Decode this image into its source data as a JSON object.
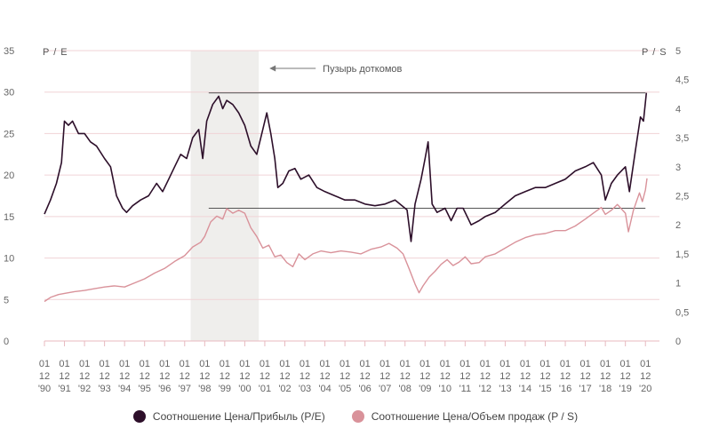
{
  "chart_data": {
    "type": "line",
    "y_left": {
      "label": "P / E",
      "ticks": [
        "0",
        "5",
        "10",
        "15",
        "20",
        "25",
        "30",
        "35"
      ],
      "range": [
        0,
        35
      ]
    },
    "y_right": {
      "label": "P / S",
      "ticks": [
        "0",
        "0,5",
        "1",
        "1,5",
        "2",
        "2,5",
        "3",
        "3,5",
        "4",
        "4,5",
        "5"
      ],
      "range": [
        0,
        5
      ]
    },
    "x_ticks": [
      [
        "01",
        "12",
        "'90"
      ],
      [
        "01",
        "12",
        "'91"
      ],
      [
        "01",
        "12",
        "'92"
      ],
      [
        "01",
        "12",
        "'93"
      ],
      [
        "01",
        "12",
        "'94"
      ],
      [
        "01",
        "12",
        "'95"
      ],
      [
        "01",
        "12",
        "'96"
      ],
      [
        "01",
        "12",
        "'97"
      ],
      [
        "01",
        "12",
        "'98"
      ],
      [
        "01",
        "12",
        "'99"
      ],
      [
        "01",
        "12",
        "'00"
      ],
      [
        "01",
        "12",
        "'01"
      ],
      [
        "01",
        "12",
        "'02"
      ],
      [
        "01",
        "12",
        "'03"
      ],
      [
        "01",
        "12",
        "'04"
      ],
      [
        "01",
        "12",
        "'05"
      ],
      [
        "01",
        "12",
        "'06"
      ],
      [
        "01",
        "12",
        "'07"
      ],
      [
        "01",
        "12",
        "'08"
      ],
      [
        "01",
        "12",
        "'09"
      ],
      [
        "01",
        "12",
        "'10"
      ],
      [
        "01",
        "12",
        "'11"
      ],
      [
        "01",
        "12",
        "'12"
      ],
      [
        "01",
        "12",
        "'13"
      ],
      [
        "01",
        "12",
        "'14"
      ],
      [
        "01",
        "12",
        "'15"
      ],
      [
        "01",
        "12",
        "'16"
      ],
      [
        "01",
        "12",
        "'17"
      ],
      [
        "01",
        "12",
        "'18"
      ],
      [
        "01",
        "12",
        "'19"
      ],
      [
        "01",
        "12",
        "'20"
      ]
    ],
    "x_range": [
      1990.0,
      2020.7
    ],
    "shade": {
      "from": 1997.3,
      "to": 2000.7,
      "label": "Пузырь доткомов"
    },
    "ref_lines": [
      {
        "axis": "left",
        "value": 29.9,
        "from": 1998.2,
        "to": 2020.0
      },
      {
        "axis": "left",
        "value": 16.0,
        "from": 1998.2,
        "to": 2020.0
      }
    ],
    "series": [
      {
        "name": "Соотношение Цена/Прибыль (P/E)",
        "axis": "left",
        "color": "#2d0f2a",
        "points": [
          [
            1990.0,
            15.3
          ],
          [
            1990.3,
            17.0
          ],
          [
            1990.6,
            19.0
          ],
          [
            1990.85,
            21.5
          ],
          [
            1991.0,
            26.5
          ],
          [
            1991.2,
            26.0
          ],
          [
            1991.4,
            26.5
          ],
          [
            1991.7,
            25.0
          ],
          [
            1992.0,
            25.0
          ],
          [
            1992.3,
            24.0
          ],
          [
            1992.6,
            23.5
          ],
          [
            1993.0,
            22.0
          ],
          [
            1993.3,
            21.0
          ],
          [
            1993.6,
            17.5
          ],
          [
            1993.9,
            16.0
          ],
          [
            1994.1,
            15.5
          ],
          [
            1994.4,
            16.3
          ],
          [
            1994.8,
            17.0
          ],
          [
            1995.2,
            17.5
          ],
          [
            1995.6,
            19.0
          ],
          [
            1995.9,
            18.0
          ],
          [
            1996.2,
            19.5
          ],
          [
            1996.5,
            21.0
          ],
          [
            1996.8,
            22.5
          ],
          [
            1997.1,
            22.0
          ],
          [
            1997.4,
            24.5
          ],
          [
            1997.7,
            25.5
          ],
          [
            1997.9,
            22.0
          ],
          [
            1998.1,
            26.5
          ],
          [
            1998.4,
            28.5
          ],
          [
            1998.7,
            29.5
          ],
          [
            1998.9,
            28.0
          ],
          [
            1999.1,
            29.0
          ],
          [
            1999.4,
            28.5
          ],
          [
            1999.7,
            27.5
          ],
          [
            2000.0,
            26.0
          ],
          [
            2000.3,
            23.5
          ],
          [
            2000.6,
            22.5
          ],
          [
            2000.9,
            25.5
          ],
          [
            2001.1,
            27.5
          ],
          [
            2001.3,
            25.0
          ],
          [
            2001.5,
            22.0
          ],
          [
            2001.65,
            18.5
          ],
          [
            2001.9,
            19.0
          ],
          [
            2002.2,
            20.5
          ],
          [
            2002.5,
            20.8
          ],
          [
            2002.8,
            19.5
          ],
          [
            2003.2,
            20.0
          ],
          [
            2003.6,
            18.5
          ],
          [
            2004.0,
            18.0
          ],
          [
            2004.5,
            17.5
          ],
          [
            2005.0,
            17.0
          ],
          [
            2005.5,
            17.0
          ],
          [
            2006.0,
            16.5
          ],
          [
            2006.5,
            16.3
          ],
          [
            2007.0,
            16.5
          ],
          [
            2007.5,
            17.0
          ],
          [
            2007.85,
            16.3
          ],
          [
            2008.1,
            15.8
          ],
          [
            2008.3,
            12.0
          ],
          [
            2008.5,
            16.5
          ],
          [
            2008.8,
            19.5
          ],
          [
            2009.0,
            22.0
          ],
          [
            2009.15,
            24.0
          ],
          [
            2009.35,
            16.5
          ],
          [
            2009.6,
            15.5
          ],
          [
            2010.0,
            16.0
          ],
          [
            2010.3,
            14.5
          ],
          [
            2010.6,
            16.0
          ],
          [
            2010.9,
            16.0
          ],
          [
            2011.3,
            14.0
          ],
          [
            2011.7,
            14.5
          ],
          [
            2012.0,
            15.0
          ],
          [
            2012.5,
            15.5
          ],
          [
            2013.0,
            16.5
          ],
          [
            2013.5,
            17.5
          ],
          [
            2014.0,
            18.0
          ],
          [
            2014.5,
            18.5
          ],
          [
            2015.0,
            18.5
          ],
          [
            2015.5,
            19.0
          ],
          [
            2016.0,
            19.5
          ],
          [
            2016.5,
            20.5
          ],
          [
            2017.0,
            21.0
          ],
          [
            2017.4,
            21.5
          ],
          [
            2017.8,
            20.0
          ],
          [
            2018.0,
            17.0
          ],
          [
            2018.3,
            19.0
          ],
          [
            2018.6,
            20.0
          ],
          [
            2019.0,
            21.0
          ],
          [
            2019.2,
            18.0
          ],
          [
            2019.5,
            23.0
          ],
          [
            2019.75,
            27.0
          ],
          [
            2019.9,
            26.5
          ],
          [
            2020.05,
            29.9
          ]
        ]
      },
      {
        "name": "Соотношение Цена/Объем продаж (P / S)",
        "axis": "right",
        "color": "#d9929a",
        "points": [
          [
            1990.0,
            0.68
          ],
          [
            1990.3,
            0.75
          ],
          [
            1990.7,
            0.8
          ],
          [
            1991.0,
            0.82
          ],
          [
            1991.5,
            0.85
          ],
          [
            1992.0,
            0.87
          ],
          [
            1992.5,
            0.9
          ],
          [
            1993.0,
            0.93
          ],
          [
            1993.5,
            0.95
          ],
          [
            1994.0,
            0.93
          ],
          [
            1994.5,
            1.0
          ],
          [
            1995.0,
            1.07
          ],
          [
            1995.5,
            1.17
          ],
          [
            1996.0,
            1.25
          ],
          [
            1996.5,
            1.37
          ],
          [
            1997.0,
            1.47
          ],
          [
            1997.4,
            1.62
          ],
          [
            1997.8,
            1.7
          ],
          [
            1998.0,
            1.8
          ],
          [
            1998.3,
            2.05
          ],
          [
            1998.6,
            2.15
          ],
          [
            1998.9,
            2.1
          ],
          [
            1999.1,
            2.28
          ],
          [
            1999.4,
            2.2
          ],
          [
            1999.7,
            2.25
          ],
          [
            2000.0,
            2.2
          ],
          [
            2000.3,
            1.95
          ],
          [
            2000.6,
            1.8
          ],
          [
            2000.9,
            1.6
          ],
          [
            2001.2,
            1.65
          ],
          [
            2001.5,
            1.45
          ],
          [
            2001.8,
            1.48
          ],
          [
            2002.1,
            1.35
          ],
          [
            2002.4,
            1.28
          ],
          [
            2002.7,
            1.5
          ],
          [
            2003.0,
            1.4
          ],
          [
            2003.4,
            1.5
          ],
          [
            2003.8,
            1.55
          ],
          [
            2004.3,
            1.52
          ],
          [
            2004.8,
            1.55
          ],
          [
            2005.3,
            1.53
          ],
          [
            2005.8,
            1.5
          ],
          [
            2006.3,
            1.58
          ],
          [
            2006.8,
            1.62
          ],
          [
            2007.2,
            1.68
          ],
          [
            2007.6,
            1.6
          ],
          [
            2007.9,
            1.5
          ],
          [
            2008.2,
            1.25
          ],
          [
            2008.5,
            0.98
          ],
          [
            2008.7,
            0.83
          ],
          [
            2008.9,
            0.95
          ],
          [
            2009.2,
            1.1
          ],
          [
            2009.5,
            1.2
          ],
          [
            2009.8,
            1.32
          ],
          [
            2010.1,
            1.4
          ],
          [
            2010.4,
            1.3
          ],
          [
            2010.7,
            1.36
          ],
          [
            2011.0,
            1.45
          ],
          [
            2011.3,
            1.33
          ],
          [
            2011.7,
            1.35
          ],
          [
            2012.0,
            1.45
          ],
          [
            2012.5,
            1.5
          ],
          [
            2013.0,
            1.6
          ],
          [
            2013.5,
            1.7
          ],
          [
            2014.0,
            1.78
          ],
          [
            2014.5,
            1.83
          ],
          [
            2015.0,
            1.85
          ],
          [
            2015.5,
            1.9
          ],
          [
            2016.0,
            1.9
          ],
          [
            2016.5,
            1.98
          ],
          [
            2017.0,
            2.1
          ],
          [
            2017.4,
            2.2
          ],
          [
            2017.8,
            2.3
          ],
          [
            2018.0,
            2.18
          ],
          [
            2018.3,
            2.25
          ],
          [
            2018.6,
            2.35
          ],
          [
            2019.0,
            2.2
          ],
          [
            2019.15,
            1.88
          ],
          [
            2019.4,
            2.25
          ],
          [
            2019.7,
            2.55
          ],
          [
            2019.85,
            2.4
          ],
          [
            2020.0,
            2.6
          ],
          [
            2020.08,
            2.8
          ]
        ]
      }
    ],
    "legend": [
      {
        "label": "Соотношение Цена/Прибыль (P/E)",
        "color": "#2d0f2a"
      },
      {
        "label": "Соотношение Цена/Объем продаж (P / S)",
        "color": "#d9929a"
      }
    ],
    "legend_position": "bottom-center",
    "grid": true
  }
}
